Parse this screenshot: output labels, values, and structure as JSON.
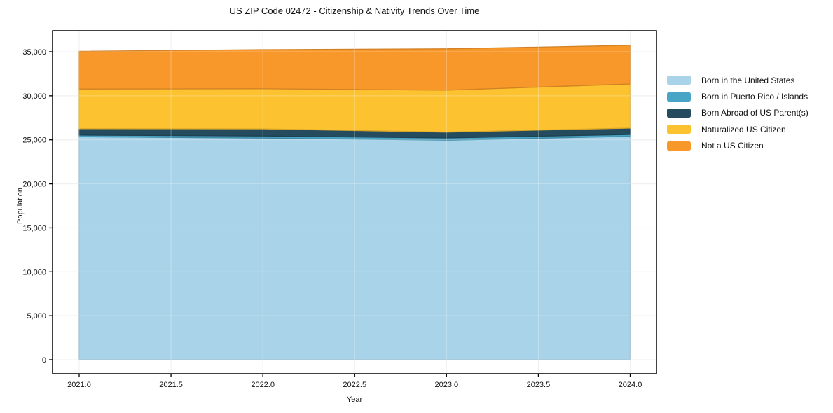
{
  "chart_data": {
    "type": "area",
    "stacked": true,
    "title": "US ZIP Code 02472 - Citizenship & Nativity Trends Over Time",
    "xlabel": "Year",
    "ylabel": "Population",
    "x": [
      2021,
      2022,
      2023,
      2024
    ],
    "series": [
      {
        "name": "Born in the United States",
        "color": "#A8D3E8",
        "values": [
          25350,
          25200,
          24950,
          25400
        ]
      },
      {
        "name": "Born in Puerto Rico / Islands",
        "color": "#49A5C6",
        "values": [
          190,
          240,
          265,
          210
        ]
      },
      {
        "name": "Born Abroad of US Parent(s)",
        "color": "#254B5E",
        "values": [
          720,
          800,
          660,
          720
        ]
      },
      {
        "name": "Naturalized US Citizen",
        "color": "#FCC22F",
        "values": [
          4510,
          4560,
          4760,
          5010
        ]
      },
      {
        "name": "Not a US Citizen",
        "color": "#F8982B",
        "values": [
          4280,
          4440,
          4700,
          4380
        ]
      }
    ],
    "stacked_totals": [
      35050,
      35240,
      35335,
      35720
    ],
    "x_ticks": [
      2021.0,
      2021.5,
      2022.0,
      2022.5,
      2023.0,
      2023.5,
      2024.0
    ],
    "x_tick_labels": [
      "2021.0",
      "2021.5",
      "2022.0",
      "2022.5",
      "2023.0",
      "2023.5",
      "2024.0"
    ],
    "y_ticks": [
      0,
      5000,
      10000,
      15000,
      20000,
      25000,
      30000,
      35000
    ],
    "y_tick_labels": [
      "0",
      "5,000",
      "10,000",
      "15,000",
      "20,000",
      "25,000",
      "30,000",
      "35,000"
    ],
    "xlim": [
      2020.86,
      2024.14
    ],
    "ylim": [
      0,
      37400
    ],
    "legend_position": "right",
    "grid": true
  }
}
